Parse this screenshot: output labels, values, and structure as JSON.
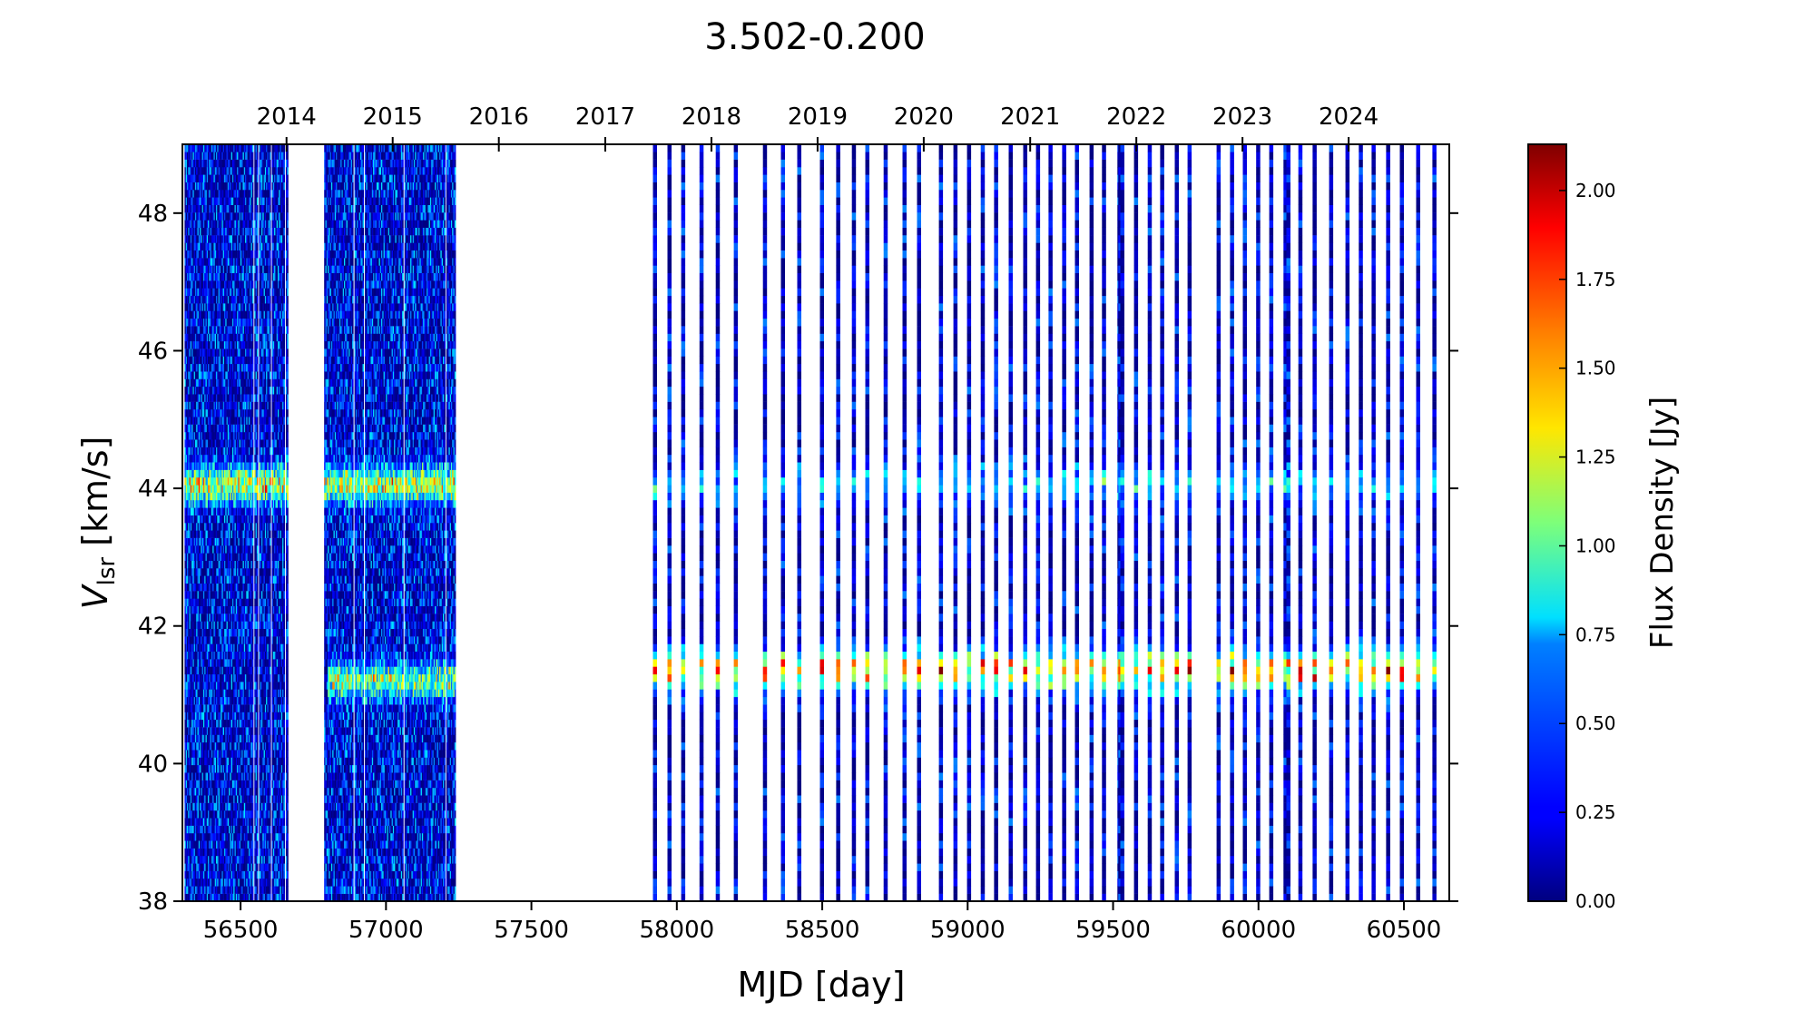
{
  "chart_data": {
    "type": "heatmap",
    "title": "3.502-0.200",
    "xlabel": "MJD [day]",
    "ylabel_main": "V",
    "ylabel_sub": "lsr",
    "ylabel_unit": " [km/s]",
    "colorbar_label": "Flux Density [Jy]",
    "colormap": "jet",
    "xlim": [
      56300,
      60656
    ],
    "ylim": [
      38,
      49
    ],
    "clim": [
      0,
      2.13
    ],
    "x_ticks": [
      "56500",
      "57000",
      "57500",
      "58000",
      "58500",
      "59000",
      "59500",
      "60000",
      "60500"
    ],
    "y_ticks": [
      "38",
      "40",
      "42",
      "44",
      "46",
      "48"
    ],
    "colorbar_ticks": [
      "0.00",
      "0.25",
      "0.50",
      "0.75",
      "1.00",
      "1.25",
      "1.50",
      "1.75",
      "2.00"
    ],
    "top_axis_years": [
      {
        "label": "2014",
        "mjd": 56658
      },
      {
        "label": "2015",
        "mjd": 57023
      },
      {
        "label": "2016",
        "mjd": 57388
      },
      {
        "label": "2017",
        "mjd": 57754
      },
      {
        "label": "2018",
        "mjd": 58119
      },
      {
        "label": "2019",
        "mjd": 58484
      },
      {
        "label": "2020",
        "mjd": 58849
      },
      {
        "label": "2021",
        "mjd": 59215
      },
      {
        "label": "2022",
        "mjd": 59580
      },
      {
        "label": "2023",
        "mjd": 59945
      },
      {
        "label": "2024",
        "mjd": 60310
      }
    ],
    "dense_observation_intervals": [
      [
        56310,
        56665
      ],
      [
        56790,
        57240
      ]
    ],
    "observation_epochs": [
      57925,
      57975,
      58022,
      58085,
      58141,
      58203,
      58303,
      58365,
      58421,
      58499,
      58555,
      58609,
      58655,
      58718,
      58783,
      58833,
      58908,
      58958,
      59005,
      59052,
      59098,
      59148,
      59198,
      59242,
      59285,
      59332,
      59376,
      59426,
      59469,
      59522,
      59525,
      59532,
      59579,
      59626,
      59669,
      59719,
      59763,
      59863,
      59909,
      59953,
      59999,
      60044,
      60093,
      60103,
      60144,
      60193,
      60250,
      60306,
      60352,
      60396,
      60446,
      60493,
      60549,
      60605
    ],
    "spectral_features": [
      {
        "velocity": 44.0,
        "mjd_range": [
          56300,
          57300
        ],
        "peak_flux": 1.3
      },
      {
        "velocity": 41.15,
        "mjd_range": [
          56800,
          57300
        ],
        "peak_flux": 1.1
      },
      {
        "velocity": 44.0,
        "mjd_range": [
          57900,
          60700
        ],
        "peak_flux": 0.7
      },
      {
        "velocity": 41.3,
        "mjd_range": [
          57900,
          60700
        ],
        "peak_flux": 1.9
      }
    ]
  }
}
